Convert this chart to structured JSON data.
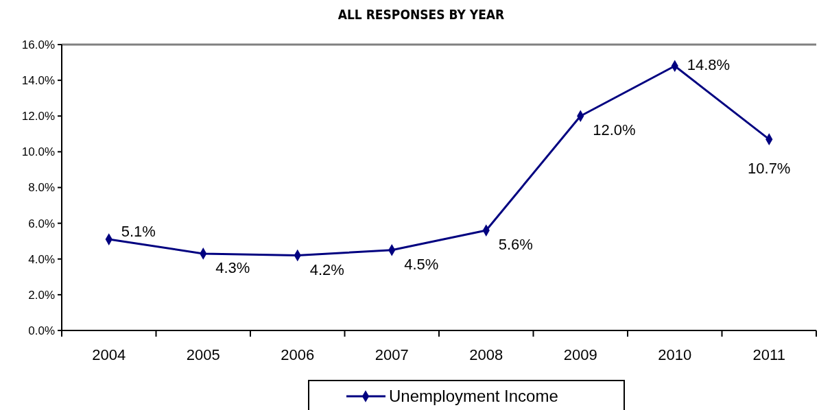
{
  "chart_data": {
    "type": "line",
    "title": "ALL RESPONSES BY YEAR",
    "categories": [
      "2004",
      "2005",
      "2006",
      "2007",
      "2008",
      "2009",
      "2010",
      "2011"
    ],
    "series": [
      {
        "name": "Unemployment Income",
        "color": "#000080",
        "values": [
          5.1,
          4.3,
          4.2,
          4.5,
          5.6,
          12.0,
          14.8,
          10.7
        ]
      }
    ],
    "value_labels": [
      "5.1%",
      "4.3%",
      "4.2%",
      "4.5%",
      "5.6%",
      "12.0%",
      "14.8%",
      "10.7%"
    ],
    "ylim": [
      0,
      16
    ],
    "yticks": [
      {
        "value": 0,
        "label": "0.0%"
      },
      {
        "value": 2,
        "label": "2.0%"
      },
      {
        "value": 4,
        "label": "4.0%"
      },
      {
        "value": 6,
        "label": "6.0%"
      },
      {
        "value": 8,
        "label": "8.0%"
      },
      {
        "value": 10,
        "label": "10.0%"
      },
      {
        "value": 12,
        "label": "12.0%"
      },
      {
        "value": 14,
        "label": "14.0%"
      },
      {
        "value": 16,
        "label": "16.0%"
      }
    ],
    "grid": false,
    "legend": "bottom",
    "marker": "diamond",
    "line_style": "solid"
  }
}
